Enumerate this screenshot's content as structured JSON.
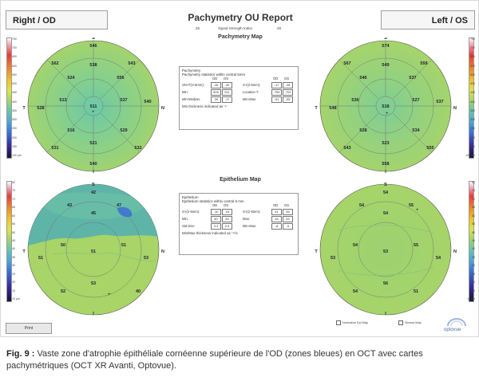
{
  "report": {
    "title": "Pachymetry OU Report",
    "right_tab": "Right / OD",
    "left_tab": "Left / OS",
    "ssi_label": "Signal Strength Index",
    "ssi_od": "25",
    "ssi_os": "28",
    "pachy_map_title": "Pachymetry Map",
    "epi_map_title": "Epithelium Map",
    "print_label": "Print",
    "normalize_label": "Normalize Epi Map",
    "stroma_label": "Stroma Map",
    "logo_text": "optovue"
  },
  "colorbar": {
    "pachy_labels": [
      "750",
      "700",
      "650",
      "600",
      "550",
      "500",
      "450",
      "400",
      "350",
      "300",
      "250",
      "200",
      "150",
      "100 µm"
    ],
    "epi_labels": [
      "80",
      "75",
      "70",
      "65",
      "60",
      "55",
      "50",
      "45",
      "40",
      "35",
      "30",
      "25",
      "20",
      "15",
      "10 µm"
    ]
  },
  "pachy_od": {
    "center": "511",
    "labels": {
      "S": "S",
      "N": "N",
      "T": "T",
      "I": "I",
      "c1": "546",
      "c2": "538",
      "c3": "540",
      "c4": "562",
      "r1": "524",
      "r2": "532",
      "r3": "537",
      "r4": "556",
      "m1": "513",
      "m2": "528",
      "m3": "529",
      "m4": "516",
      "o1": "521",
      "o2": "531",
      "o3": "543",
      "o4": "540"
    }
  },
  "pachy_os": {
    "center": "518",
    "labels": {
      "S": "S",
      "N": "N",
      "T": "T",
      "I": "I",
      "c1": "574",
      "c2": "549",
      "c3": "567",
      "c4": "537",
      "r1": "546",
      "r2": "548",
      "r3": "537",
      "r4": "534",
      "m1": "530",
      "m2": "527",
      "m3": "528",
      "m4": "523",
      "o1": "559",
      "o2": "558",
      "o3": "543",
      "o4": "555"
    }
  },
  "epi_od": {
    "center": "51",
    "labels": {
      "S": "S",
      "N": "N",
      "T": "T",
      "I": "I",
      "a": "42",
      "b": "47",
      "c": "50",
      "d": "51",
      "e": "53",
      "f": "52",
      "g": "43",
      "h": "45",
      "i": "51",
      "j": "53",
      "k": "40"
    }
  },
  "epi_os": {
    "center": "53",
    "labels": {
      "S": "S",
      "N": "N",
      "T": "T",
      "I": "I",
      "a": "54",
      "b": "54",
      "c": "55",
      "d": "54",
      "e": "54",
      "f": "55",
      "g": "53",
      "h": "54",
      "i": "56",
      "j": "54",
      "k": "51"
    }
  },
  "pachy_table": {
    "header": "Pachymetry",
    "subtitle": "Pachymetry statistics within central 5mm",
    "col_od": "OD",
    "col_os": "OS",
    "rows_left": [
      {
        "label": "SN-IT(2-5mm):",
        "od": "-26",
        "os": "-20"
      },
      {
        "label": "Min:",
        "od": "509",
        "os": "511"
      },
      {
        "label": "Min-Median:",
        "od": "-26",
        "os": "-17"
      }
    ],
    "rows_right": [
      {
        "label": "S-I(2-5mm):",
        "od": "-17",
        "os": "-28"
      },
      {
        "label": "Location Y:",
        "od": "-755",
        "os": "-703"
      },
      {
        "label": "Min-Max:",
        "od": "-51",
        "os": "-59"
      }
    ],
    "footnote": "Min thickness indicated as '+'"
  },
  "epi_table": {
    "header": "Epithelium",
    "subtitle": "Epithelium statistics within central 5 mm",
    "col_od": "OD",
    "col_os": "OS",
    "rows_left": [
      {
        "label": "S-I(2-5mm):",
        "od": "-10",
        "os": "-03"
      },
      {
        "label": "Min:",
        "od": "40",
        "os": "49"
      },
      {
        "label": "Std Dev:",
        "od": "3.3",
        "os": "0.9"
      }
    ],
    "rows_right": [
      {
        "label": "S-I(2-5mm):",
        "od": "51",
        "os": "55"
      },
      {
        "label": "Max:",
        "od": "34",
        "os": "53"
      },
      {
        "label": "Min-Max:",
        "od": "-8",
        "os": "-5"
      }
    ],
    "footnote": "Min/Max thickness indicated as '+'/x"
  },
  "caption": {
    "fig_label": "Fig. 9 :",
    "text": " Vaste zone d'atrophie épithéliale cornéenne supérieure de l'OD (zones bleues) en OCT avec cartes pachymétriques (OCT XR Avanti, Optovue)."
  },
  "colors": {
    "map_green": "#a8d468",
    "map_teal": "#6cc8a8",
    "map_blue": "#4aa8d8",
    "caption_label": "#222222"
  }
}
